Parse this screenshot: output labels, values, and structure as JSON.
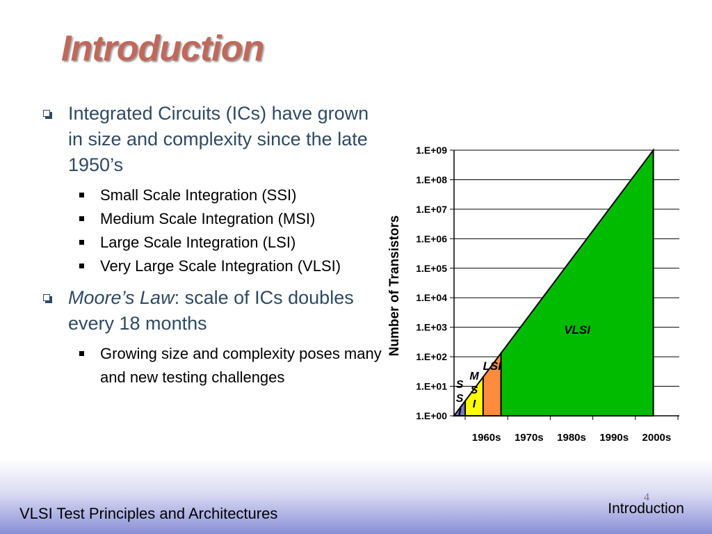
{
  "slide": {
    "title": "Introduction",
    "page_number": "4"
  },
  "bullets": [
    {
      "text": "Integrated Circuits (ICs) have grown in size and complexity since the late 1950’s",
      "sub": [
        "Small Scale Integration (SSI)",
        "Medium Scale Integration (MSI)",
        "Large Scale Integration (LSI)",
        "Very Large Scale Integration (VLSI)"
      ]
    },
    {
      "italic": "Moore’s Law",
      "text": ": scale of ICs doubles every 18 months",
      "sub": [
        "Growing size and complexity poses many and new testing challenges"
      ]
    }
  ],
  "footer": {
    "left": "VLSI Test Principles and Architectures",
    "right": "Introduction"
  },
  "chart_data": {
    "type": "area",
    "ylabel": "Number of Transistors",
    "xlabel": "",
    "y_scale": "log10",
    "y_ticks": [
      "1.E+00",
      "1.E+01",
      "1.E+02",
      "1.E+03",
      "1.E+04",
      "1.E+05",
      "1.E+06",
      "1.E+07",
      "1.E+08",
      "1.E+09"
    ],
    "ylim": [
      1,
      1000000000
    ],
    "categories": [
      "1960s",
      "1970s",
      "1980s",
      "1990s",
      "2000s"
    ],
    "x_range_years": [
      1960,
      2010
    ],
    "line": {
      "x": [
        1960,
        2004.5
      ],
      "y": [
        1,
        1000000000
      ]
    },
    "regions": [
      {
        "label": "S\nS\nI",
        "x_start": 1960,
        "x_end": 1962.5,
        "color": "#7478bd"
      },
      {
        "label": "M\nS\nI",
        "x_start": 1962.5,
        "x_end": 1966.5,
        "color": "#ffff00"
      },
      {
        "label": "LSI",
        "x_start": 1966.5,
        "x_end": 1970.5,
        "color": "#ff8c3c"
      },
      {
        "label": "VLSI",
        "x_start": 1970.5,
        "x_end": 2004.5,
        "color": "#00bb00"
      }
    ],
    "grid": true
  }
}
